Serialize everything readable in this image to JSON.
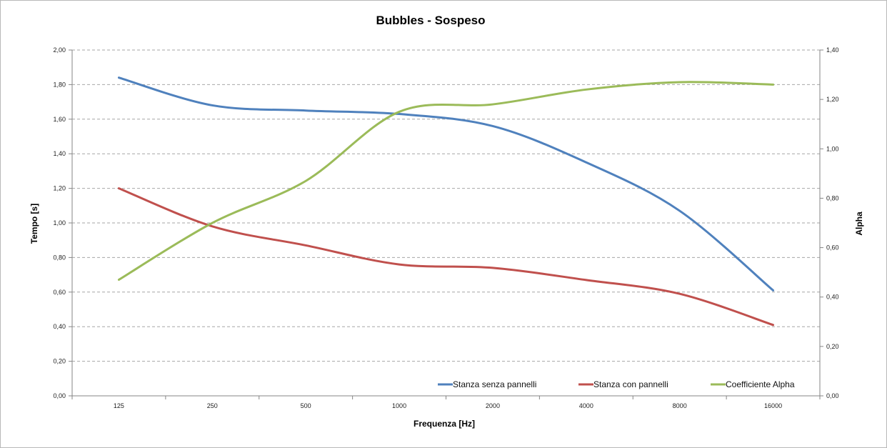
{
  "chart_data": {
    "type": "line",
    "title": "Bubbles - Sospeso",
    "xlabel": "Frequenza [Hz]",
    "ylabel": "Tempo [s]",
    "y2label": "Alpha",
    "categories": [
      "125",
      "250",
      "500",
      "1000",
      "2000",
      "4000",
      "8000",
      "16000"
    ],
    "ylim": [
      0,
      2
    ],
    "y2lim": [
      0,
      1.4
    ],
    "yticks": [
      "0,00",
      "0,20",
      "0,40",
      "0,60",
      "0,80",
      "1,00",
      "1,20",
      "1,40",
      "1,60",
      "1,80",
      "2,00"
    ],
    "y2ticks": [
      "0,00",
      "0,20",
      "0,40",
      "0,60",
      "0,80",
      "1,00",
      "1,20",
      "1,40"
    ],
    "grid": true,
    "legend_position": "bottom-right",
    "series": [
      {
        "name": "Stanza senza pannelli",
        "axis": "left",
        "color": "#4F81BD",
        "values": [
          1.84,
          1.68,
          1.65,
          1.63,
          1.56,
          1.35,
          1.07,
          0.61
        ]
      },
      {
        "name": "Stanza con pannelli",
        "axis": "left",
        "color": "#C0504D",
        "values": [
          1.2,
          0.98,
          0.87,
          0.76,
          0.74,
          0.67,
          0.59,
          0.41
        ]
      },
      {
        "name": "Coefficiente Alpha",
        "axis": "right",
        "color": "#9BBB59",
        "values": [
          0.47,
          0.7,
          0.87,
          1.15,
          1.18,
          1.24,
          1.27,
          1.26
        ]
      }
    ]
  }
}
